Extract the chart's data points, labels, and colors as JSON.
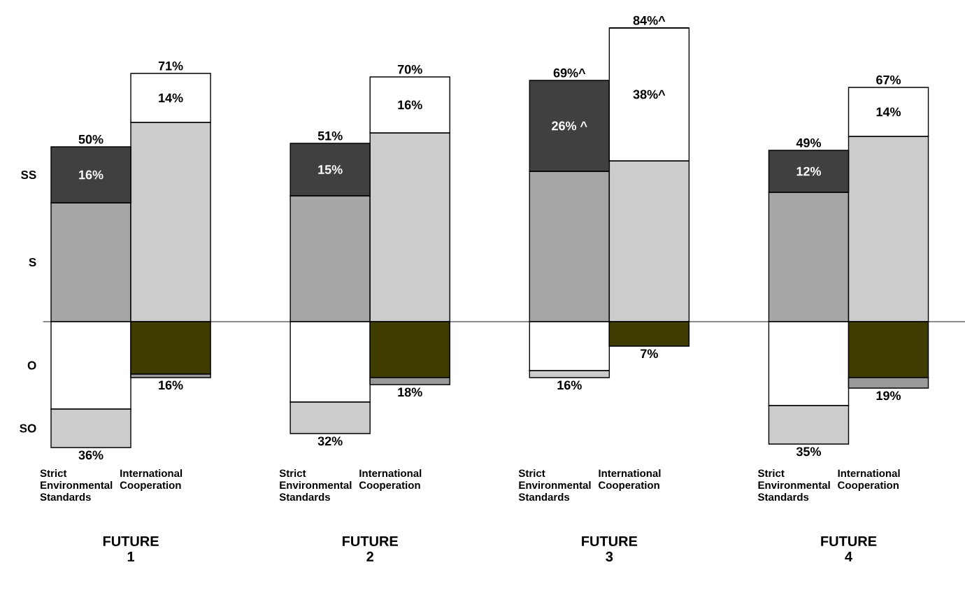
{
  "chart_data": {
    "type": "bar",
    "stacked": true,
    "categories": [
      "Strict Environmental Standards",
      "International Cooperation",
      "Strict Environmental Standards",
      "International Cooperation",
      "Strict Environmental Standards",
      "International Cooperation",
      "Strict Environmental Standards",
      "International Cooperation"
    ],
    "series": [
      {
        "name": "S",
        "colors": [
          "#a6a6a6",
          "#cccccc",
          "#a6a6a6",
          "#cccccc",
          "#a6a6a6",
          "#cccccc",
          "#a6a6a6",
          "#cccccc"
        ],
        "values": [
          34,
          57,
          36,
          54,
          43,
          46,
          37,
          53
        ]
      },
      {
        "name": "SS",
        "colors": [
          "#404040",
          "#ffffff",
          "#404040",
          "#ffffff",
          "#404040",
          "#ffffff",
          "#404040",
          "#ffffff"
        ],
        "values": [
          16,
          14,
          15,
          16,
          26,
          38,
          12,
          14
        ],
        "value_labels": [
          "16%",
          "14%",
          "15%",
          "16%",
          "26% ^",
          "38%^",
          "12%",
          "14%"
        ]
      },
      {
        "name": "O",
        "colors": [
          "#ffffff",
          "#403c00",
          "#ffffff",
          "#403c00",
          "#ffffff",
          "#403c00",
          "#ffffff",
          "#403c00"
        ],
        "values": [
          -25,
          -15,
          -23,
          -16,
          -14,
          -7,
          -24,
          -16
        ]
      },
      {
        "name": "SO",
        "colors": [
          "#cccccc",
          "#999999",
          "#cccccc",
          "#999999",
          "#cccccc",
          "#999999",
          "#cccccc",
          "#999999"
        ],
        "values": [
          -11,
          -1,
          -9,
          -2,
          -2,
          0,
          -11,
          -3
        ]
      }
    ],
    "annotations": [
      "50%",
      "71%",
      "51%",
      "70%",
      "69%^",
      "84%^",
      "49%",
      "67%",
      "36%",
      "16%",
      "32%",
      "18%",
      "16%",
      "7%",
      "35%",
      "19%",
      "FUTURE 1",
      "FUTURE 2",
      "FUTURE 3",
      "FUTURE 4"
    ]
  }
}
